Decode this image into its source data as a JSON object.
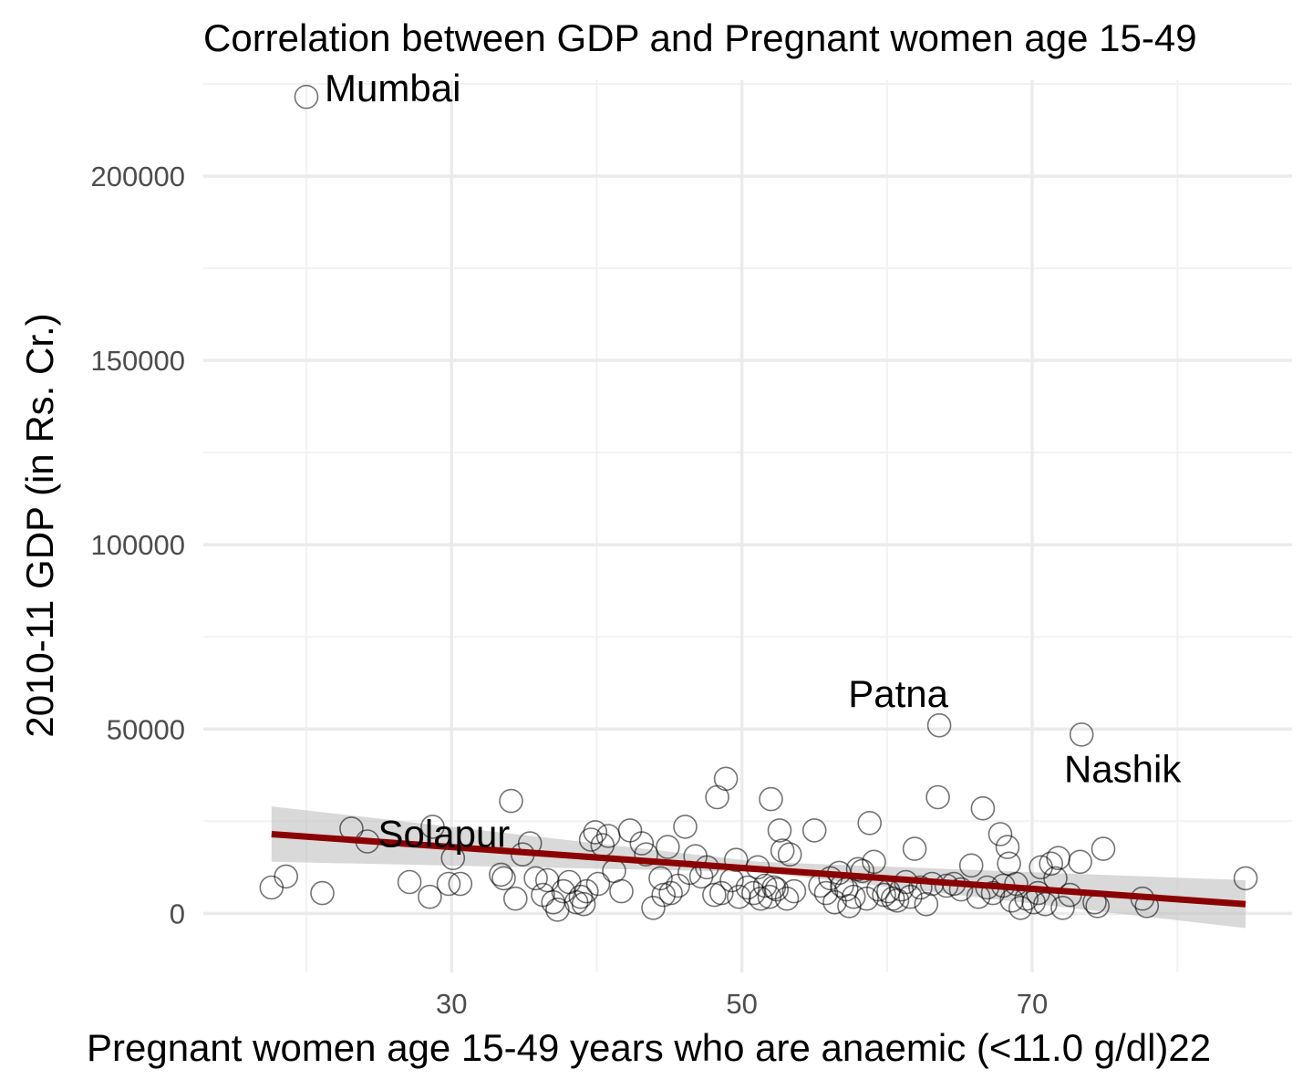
{
  "chart_data": {
    "type": "scatter",
    "title": "Correlation between GDP and Pregnant women age 15-49",
    "xlabel": "Pregnant women age 15-49 years who are anaemic (<11.0 g/dl)22",
    "ylabel": "2010-11 GDP (in Rs. Cr.)",
    "xlim": [
      12.9,
      87.9
    ],
    "ylim": [
      -16000,
      226000
    ],
    "x_ticks": [
      30,
      50,
      70
    ],
    "x_tick_labels": [
      "30",
      "50",
      "70"
    ],
    "x_minor_ticks": [
      20,
      40,
      60,
      80
    ],
    "y_ticks": [
      0,
      50000,
      100000,
      150000,
      200000
    ],
    "y_tick_labels": [
      "0",
      "50000",
      "100000",
      "150000",
      "200000"
    ],
    "y_minor_ticks": [
      25000,
      75000,
      125000,
      175000,
      225000
    ],
    "grid": true,
    "trend_line": {
      "color": "#8b0000",
      "x_start": 17.6,
      "y_start": 21500,
      "x_end": 84.7,
      "y_end": 2500
    },
    "confidence_band": {
      "lower_start": 14000,
      "upper_start": 29000,
      "lower_mid": 11200,
      "upper_mid": 14000,
      "lower_end": -4000,
      "upper_end": 9000
    },
    "labels": [
      {
        "text": "Mumbai",
        "x": 20.0,
        "y": 221500
      },
      {
        "text": "Patna",
        "x": 63.6,
        "y": 51000
      },
      {
        "text": "Nashik",
        "x": 73.4,
        "y": 48500
      },
      {
        "text": "Solapur",
        "x": 28.7,
        "y": 23000
      }
    ],
    "points": [
      [
        20.0,
        221500
      ],
      [
        63.6,
        51000
      ],
      [
        73.4,
        48500
      ],
      [
        17.6,
        7000
      ],
      [
        18.6,
        10000
      ],
      [
        21.1,
        5500
      ],
      [
        23.1,
        23000
      ],
      [
        24.2,
        19500
      ],
      [
        27.1,
        8500
      ],
      [
        28.5,
        4500
      ],
      [
        28.7,
        23500
      ],
      [
        29.8,
        8000
      ],
      [
        30.1,
        15000
      ],
      [
        30.6,
        8000
      ],
      [
        33.4,
        10500
      ],
      [
        33.6,
        9500
      ],
      [
        34.1,
        30500
      ],
      [
        34.4,
        4000
      ],
      [
        34.9,
        16000
      ],
      [
        35.4,
        19000
      ],
      [
        35.8,
        9500
      ],
      [
        36.3,
        5000
      ],
      [
        36.6,
        9000
      ],
      [
        37.0,
        3000
      ],
      [
        37.3,
        1000
      ],
      [
        37.7,
        6000
      ],
      [
        38.1,
        8500
      ],
      [
        38.6,
        3000
      ],
      [
        38.9,
        4500
      ],
      [
        39.1,
        2500
      ],
      [
        39.3,
        6000
      ],
      [
        39.6,
        20000
      ],
      [
        39.9,
        22000
      ],
      [
        40.1,
        8000
      ],
      [
        40.4,
        18500
      ],
      [
        40.8,
        21000
      ],
      [
        41.2,
        11500
      ],
      [
        42.3,
        22500
      ],
      [
        43.1,
        19000
      ],
      [
        43.4,
        16000
      ],
      [
        43.9,
        1500
      ],
      [
        44.4,
        9500
      ],
      [
        44.6,
        5000
      ],
      [
        44.9,
        18000
      ],
      [
        45.1,
        5500
      ],
      [
        45.6,
        7500
      ],
      [
        46.1,
        23500
      ],
      [
        46.8,
        15500
      ],
      [
        47.2,
        10000
      ],
      [
        47.6,
        12500
      ],
      [
        48.1,
        5000
      ],
      [
        48.3,
        31500
      ],
      [
        48.6,
        5500
      ],
      [
        48.9,
        36500
      ],
      [
        49.3,
        9000
      ],
      [
        49.6,
        14500
      ],
      [
        49.8,
        4500
      ],
      [
        50.4,
        7000
      ],
      [
        50.8,
        5500
      ],
      [
        51.1,
        12500
      ],
      [
        51.3,
        4000
      ],
      [
        51.6,
        7500
      ],
      [
        51.9,
        4500
      ],
      [
        52.0,
        31000
      ],
      [
        52.4,
        6500
      ],
      [
        52.6,
        22500
      ],
      [
        52.8,
        17000
      ],
      [
        53.1,
        4000
      ],
      [
        53.3,
        16000
      ],
      [
        53.6,
        6000
      ],
      [
        55.0,
        22500
      ],
      [
        55.4,
        7500
      ],
      [
        55.8,
        5500
      ],
      [
        56.1,
        9500
      ],
      [
        56.4,
        3000
      ],
      [
        56.7,
        11000
      ],
      [
        56.9,
        7500
      ],
      [
        57.2,
        6500
      ],
      [
        57.4,
        2000
      ],
      [
        57.7,
        4500
      ],
      [
        58.0,
        12000
      ],
      [
        58.3,
        11500
      ],
      [
        58.6,
        4000
      ],
      [
        58.8,
        24500
      ],
      [
        59.1,
        14000
      ],
      [
        59.4,
        6500
      ],
      [
        59.8,
        5000
      ],
      [
        60.1,
        6000
      ],
      [
        60.4,
        4000
      ],
      [
        60.7,
        3500
      ],
      [
        61.0,
        6500
      ],
      [
        61.3,
        8500
      ],
      [
        61.6,
        4500
      ],
      [
        61.9,
        17500
      ],
      [
        62.3,
        7000
      ],
      [
        62.7,
        2500
      ],
      [
        63.1,
        8000
      ],
      [
        63.5,
        31500
      ],
      [
        64.1,
        7500
      ],
      [
        64.6,
        8000
      ],
      [
        65.1,
        6500
      ],
      [
        65.8,
        13000
      ],
      [
        66.3,
        4500
      ],
      [
        66.6,
        28500
      ],
      [
        66.9,
        7000
      ],
      [
        67.3,
        5500
      ],
      [
        67.8,
        21500
      ],
      [
        68.0,
        7500
      ],
      [
        68.3,
        18000
      ],
      [
        68.4,
        13500
      ],
      [
        68.6,
        3500
      ],
      [
        68.9,
        8000
      ],
      [
        69.2,
        1500
      ],
      [
        69.6,
        4000
      ],
      [
        70.1,
        3000
      ],
      [
        70.4,
        5500
      ],
      [
        70.6,
        12500
      ],
      [
        70.9,
        2500
      ],
      [
        71.3,
        13500
      ],
      [
        71.6,
        9500
      ],
      [
        71.8,
        15000
      ],
      [
        72.1,
        1500
      ],
      [
        72.6,
        5000
      ],
      [
        73.3,
        14000
      ],
      [
        74.5,
        2000
      ],
      [
        74.3,
        3000
      ],
      [
        74.9,
        17500
      ],
      [
        77.6,
        4000
      ],
      [
        77.9,
        2000
      ],
      [
        84.7,
        9500
      ],
      [
        52.2,
        7000
      ],
      [
        46.4,
        11000
      ],
      [
        41.7,
        6000
      ]
    ]
  }
}
